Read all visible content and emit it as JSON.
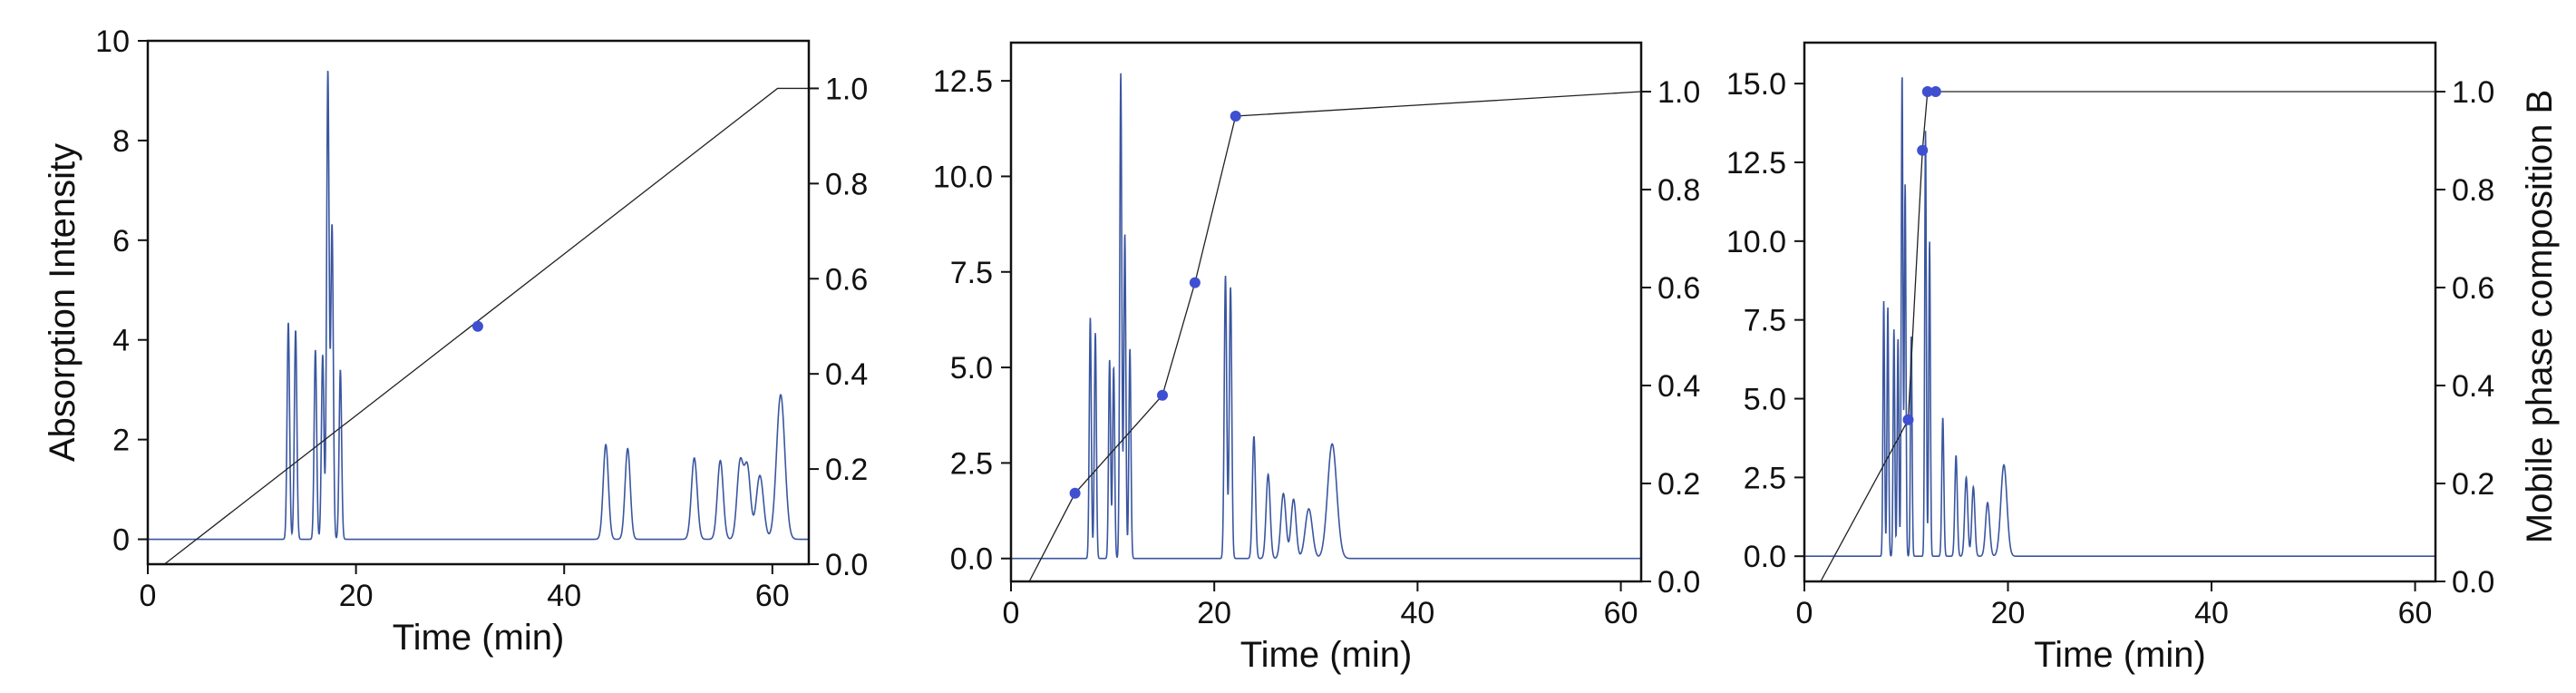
{
  "chart_data": [
    {
      "type": "line",
      "xlabel": "Time (min)",
      "ylabel": "Absorption Intensity",
      "y2label": "",
      "xlim": [
        0,
        63.5
      ],
      "ylim": [
        -0.5,
        10
      ],
      "y2lim": [
        0,
        1.1
      ],
      "xticks": [
        "0",
        "20",
        "40",
        "60"
      ],
      "yticks": [
        "0",
        "2",
        "4",
        "6",
        "8",
        "10"
      ],
      "y2ticks": [
        "0.0",
        "0.2",
        "0.4",
        "0.6",
        "0.8",
        "1.0"
      ],
      "grid": false,
      "colors": {
        "chromatogram": "#3a56a0",
        "gradient": "#222222",
        "marker": "#3e4fd1"
      },
      "chromatogram_peaks": [
        [
          13.5,
          4.35,
          0.12
        ],
        [
          14.2,
          4.2,
          0.12
        ],
        [
          16.1,
          3.8,
          0.12
        ],
        [
          16.8,
          3.7,
          0.12
        ],
        [
          17.3,
          9.4,
          0.12
        ],
        [
          17.7,
          6.3,
          0.12
        ],
        [
          18.5,
          3.4,
          0.12
        ],
        [
          44.0,
          1.9,
          0.25
        ],
        [
          46.1,
          1.82,
          0.25
        ],
        [
          52.5,
          1.63,
          0.28
        ],
        [
          55.0,
          1.58,
          0.28
        ],
        [
          56.9,
          1.52,
          0.3
        ],
        [
          57.6,
          1.42,
          0.3
        ],
        [
          58.8,
          1.28,
          0.35
        ],
        [
          60.8,
          2.9,
          0.4
        ]
      ],
      "gradient_profile": [
        [
          1.6,
          0.0
        ],
        [
          60.5,
          1.0
        ],
        [
          63.5,
          1.0
        ]
      ],
      "gradient_markers": [
        [
          31.7,
          0.5
        ]
      ]
    },
    {
      "type": "line",
      "xlabel": "Time (min)",
      "ylabel": "",
      "y2label": "",
      "xlim": [
        0,
        62
      ],
      "ylim": [
        -0.6,
        13.5
      ],
      "y2lim": [
        0,
        1.1
      ],
      "xticks": [
        "0",
        "20",
        "40",
        "60"
      ],
      "yticks": [
        "0.0",
        "2.5",
        "5.0",
        "7.5",
        "10.0",
        "12.5"
      ],
      "y2ticks": [
        "0.0",
        "0.2",
        "0.4",
        "0.6",
        "0.8",
        "1.0"
      ],
      "grid": false,
      "colors": {
        "chromatogram": "#3a56a0",
        "gradient": "#222222",
        "marker": "#3e4fd1"
      },
      "chromatogram_peaks": [
        [
          7.8,
          6.3,
          0.1
        ],
        [
          8.3,
          5.9,
          0.1
        ],
        [
          9.7,
          5.2,
          0.1
        ],
        [
          10.1,
          5.0,
          0.1
        ],
        [
          10.8,
          12.7,
          0.1
        ],
        [
          11.2,
          8.5,
          0.1
        ],
        [
          11.7,
          5.5,
          0.1
        ],
        [
          21.1,
          7.4,
          0.12
        ],
        [
          21.6,
          7.1,
          0.12
        ],
        [
          23.9,
          3.2,
          0.15
        ],
        [
          25.3,
          2.2,
          0.2
        ],
        [
          26.8,
          1.7,
          0.25
        ],
        [
          27.8,
          1.55,
          0.25
        ],
        [
          29.3,
          1.3,
          0.35
        ],
        [
          31.6,
          3.0,
          0.45
        ]
      ],
      "gradient_profile": [
        [
          1.8,
          0.0
        ],
        [
          6.3,
          0.18
        ],
        [
          14.9,
          0.38
        ],
        [
          18.1,
          0.61
        ],
        [
          22.1,
          0.95
        ],
        [
          62,
          1.0
        ]
      ],
      "gradient_markers": [
        [
          6.3,
          0.18
        ],
        [
          14.9,
          0.38
        ],
        [
          18.1,
          0.61
        ],
        [
          22.1,
          0.95
        ]
      ]
    },
    {
      "type": "line",
      "xlabel": "Time (min)",
      "ylabel": "",
      "y2label": "Mobile phase composition B",
      "xlim": [
        0,
        62
      ],
      "ylim": [
        -0.8,
        16.3
      ],
      "y2lim": [
        0,
        1.1
      ],
      "xticks": [
        "0",
        "20",
        "40",
        "60"
      ],
      "yticks": [
        "0.0",
        "2.5",
        "5.0",
        "7.5",
        "10.0",
        "12.5",
        "15.0"
      ],
      "y2ticks": [
        "0.0",
        "0.2",
        "0.4",
        "0.6",
        "0.8",
        "1.0"
      ],
      "grid": false,
      "colors": {
        "chromatogram": "#3a56a0",
        "gradient": "#222222",
        "marker": "#3e4fd1"
      },
      "chromatogram_peaks": [
        [
          7.8,
          8.1,
          0.08
        ],
        [
          8.2,
          7.9,
          0.08
        ],
        [
          8.8,
          7.2,
          0.08
        ],
        [
          9.2,
          6.9,
          0.08
        ],
        [
          9.6,
          15.3,
          0.08
        ],
        [
          9.9,
          11.8,
          0.08
        ],
        [
          10.5,
          7.0,
          0.08
        ],
        [
          11.9,
          13.5,
          0.08
        ],
        [
          12.3,
          10.0,
          0.08
        ],
        [
          13.6,
          4.4,
          0.1
        ],
        [
          14.9,
          3.2,
          0.12
        ],
        [
          15.9,
          2.5,
          0.15
        ],
        [
          16.6,
          2.2,
          0.15
        ],
        [
          18.0,
          1.7,
          0.2
        ],
        [
          19.6,
          2.9,
          0.3
        ]
      ],
      "gradient_profile": [
        [
          1.6,
          0.0
        ],
        [
          10.2,
          0.33
        ],
        [
          11.6,
          0.88
        ],
        [
          12.1,
          1.0
        ],
        [
          12.9,
          1.0
        ],
        [
          62,
          1.0
        ]
      ],
      "gradient_markers": [
        [
          10.2,
          0.33
        ],
        [
          11.6,
          0.88
        ],
        [
          12.1,
          1.0
        ],
        [
          12.9,
          1.0
        ]
      ]
    }
  ]
}
